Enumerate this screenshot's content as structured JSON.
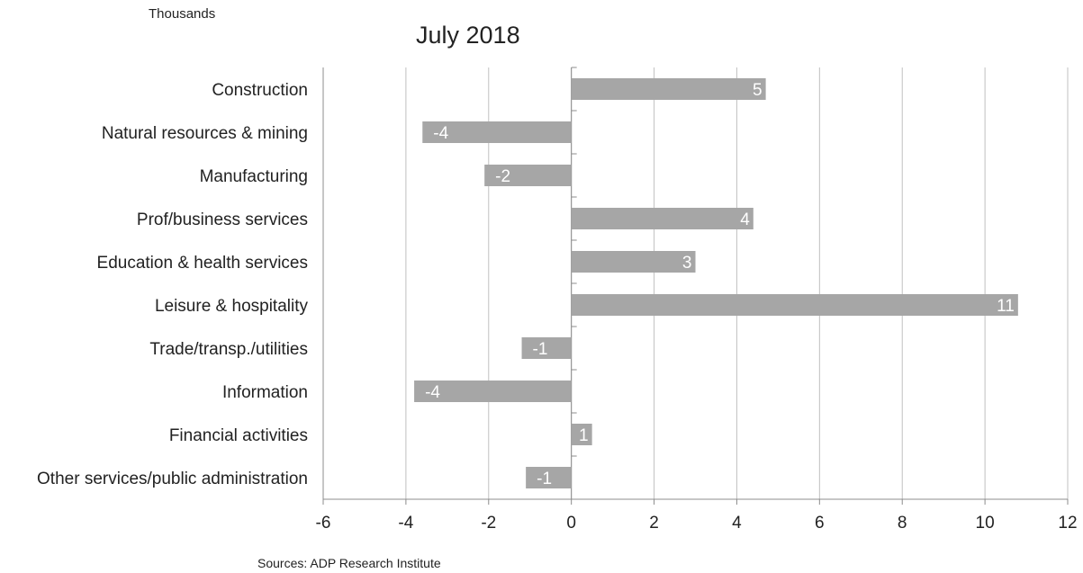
{
  "header": {
    "units": "Thousands",
    "title": "July 2018"
  },
  "footer": {
    "source": "Sources: ADP Research Institute"
  },
  "colors": {
    "bar": "#a6a6a6",
    "grid": "#c0c0c0",
    "axis": "#8c8c8c",
    "data_label": "#ffffff"
  },
  "chart_data": {
    "type": "bar",
    "orientation": "horizontal",
    "title": "July 2018",
    "unit_label": "Thousands",
    "categories": [
      "Construction",
      "Natural resources & mining",
      "Manufacturing",
      "Prof/business services",
      "Education & health services",
      "Leisure & hospitality",
      "Trade/transp./utilities",
      "Information",
      "Financial activities",
      "Other services/public administration"
    ],
    "values": [
      4.7,
      -3.6,
      -2.1,
      4.4,
      3.0,
      10.8,
      -1.2,
      -3.8,
      0.5,
      -1.1
    ],
    "data_labels": [
      "5",
      "-4",
      "-2",
      "4",
      "3",
      "11",
      "-1",
      "-4",
      "1",
      "-1"
    ],
    "xlim": [
      -6,
      12
    ],
    "xticks": [
      "-6",
      "-4",
      "-2",
      "0",
      "2",
      "4",
      "6",
      "8",
      "10",
      "12"
    ],
    "grid": true,
    "legend": "none"
  }
}
